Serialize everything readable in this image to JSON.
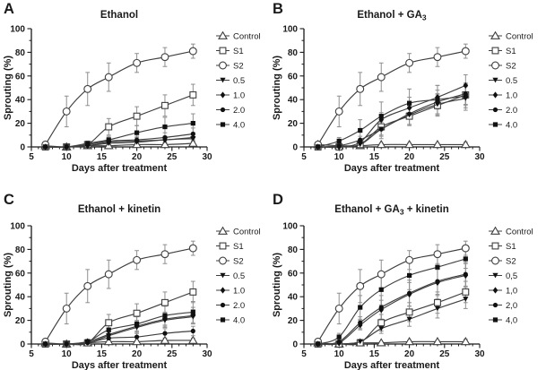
{
  "colors": {
    "axis": "#1a1a1a",
    "line": "#3f3f3f",
    "marker": "#111111",
    "error": "#8f8f8f",
    "background": "#ffffff"
  },
  "axes": {
    "xlabel": "Days after treatment",
    "ylabel": "Sprouting (%)",
    "xlim": [
      5,
      30
    ],
    "ylim": [
      0,
      100
    ],
    "x_ticks": [
      5,
      10,
      15,
      20,
      25,
      30
    ],
    "y_ticks": [
      0,
      20,
      40,
      60,
      80,
      100
    ],
    "x_minor_step": 1,
    "y_minor_step": 10,
    "grid": false,
    "legend_position": "right"
  },
  "chart_data": [
    {
      "panel_label": "A",
      "type": "line",
      "title": "Ethanol",
      "xlabel": "Days after treatment",
      "ylabel": "Sprouting (%)",
      "x": [
        7,
        10,
        13,
        16,
        20,
        24,
        28
      ],
      "xlim": [
        5,
        30
      ],
      "ylim": [
        0,
        100
      ],
      "legend_position": "right",
      "series": [
        {
          "name": "Control",
          "marker": "triangle-open",
          "values": [
            1,
            0,
            1,
            1,
            2,
            2,
            3
          ],
          "errors": [
            1,
            1,
            1,
            1,
            1,
            2,
            2
          ]
        },
        {
          "name": "S1",
          "marker": "square-open",
          "values": [
            0,
            0,
            2,
            17,
            26,
            35,
            44
          ],
          "errors": [
            1,
            1,
            1,
            7,
            8,
            9,
            9
          ]
        },
        {
          "name": "S2",
          "marker": "circle-open",
          "values": [
            2,
            30,
            49,
            59,
            71,
            76,
            81
          ],
          "errors": [
            2,
            13,
            14,
            12,
            8,
            8,
            6
          ]
        },
        {
          "name": "0.5",
          "marker": "triangle-down-filled",
          "values": [
            0,
            0,
            1,
            3,
            4,
            6,
            7
          ],
          "errors": [
            0,
            0,
            1,
            2,
            2,
            3,
            3
          ]
        },
        {
          "name": "1.0",
          "marker": "diamond-filled",
          "values": [
            0,
            0,
            1,
            4,
            5,
            6,
            8
          ],
          "errors": [
            0,
            0,
            1,
            2,
            3,
            3,
            4
          ]
        },
        {
          "name": "2.0",
          "marker": "circle-filled",
          "values": [
            0,
            0,
            2,
            5,
            6,
            8,
            11
          ],
          "errors": [
            0,
            0,
            1,
            3,
            3,
            4,
            5
          ]
        },
        {
          "name": "4.0",
          "marker": "square-filled",
          "values": [
            0,
            0,
            3,
            6,
            12,
            17,
            20
          ],
          "errors": [
            0,
            0,
            2,
            3,
            6,
            8,
            8
          ]
        }
      ]
    },
    {
      "panel_label": "B",
      "type": "line",
      "title": "Ethanol + GA₃",
      "xlabel": "Days after treatment",
      "ylabel": "Sprouting (%)",
      "x": [
        7,
        10,
        13,
        16,
        20,
        24,
        28
      ],
      "xlim": [
        5,
        30
      ],
      "ylim": [
        0,
        100
      ],
      "legend_position": "right",
      "series": [
        {
          "name": "Control",
          "marker": "triangle-open",
          "values": [
            2,
            1,
            1,
            2,
            2,
            2,
            2
          ],
          "errors": [
            1,
            1,
            1,
            1,
            1,
            1,
            2
          ]
        },
        {
          "name": "S1",
          "marker": "square-open",
          "values": [
            0,
            0,
            2,
            17,
            26,
            35,
            44
          ],
          "errors": [
            1,
            1,
            1,
            7,
            8,
            9,
            9
          ]
        },
        {
          "name": "S2",
          "marker": "circle-open",
          "values": [
            2,
            30,
            49,
            59,
            71,
            76,
            81
          ],
          "errors": [
            2,
            13,
            14,
            12,
            8,
            8,
            6
          ]
        },
        {
          "name": "0.5",
          "marker": "triangle-down-filled",
          "values": [
            0,
            0,
            2,
            15,
            27,
            36,
            41
          ],
          "errors": [
            0,
            0,
            2,
            6,
            8,
            9,
            10
          ]
        },
        {
          "name": "1.0",
          "marker": "diamond-filled",
          "values": [
            0,
            0,
            4,
            23,
            33,
            42,
            52
          ],
          "errors": [
            0,
            1,
            2,
            6,
            9,
            10,
            9
          ]
        },
        {
          "name": "2.0",
          "marker": "circle-filled",
          "values": [
            0,
            1,
            6,
            15,
            28,
            38,
            45
          ],
          "errors": [
            0,
            1,
            3,
            8,
            9,
            10,
            9
          ]
        },
        {
          "name": "4.0",
          "marker": "square-filled",
          "values": [
            0,
            5,
            14,
            26,
            37,
            40,
            43
          ],
          "errors": [
            0,
            3,
            9,
            12,
            12,
            12,
            10
          ]
        }
      ]
    },
    {
      "panel_label": "C",
      "type": "line",
      "title": "Ethanol + kinetin",
      "xlabel": "Days after treatment",
      "ylabel": "Sprouting (%)",
      "x": [
        7,
        10,
        13,
        16,
        20,
        24,
        28
      ],
      "xlim": [
        5,
        30
      ],
      "ylim": [
        0,
        100
      ],
      "legend_position": "right",
      "series": [
        {
          "name": "Control",
          "marker": "triangle-open",
          "values": [
            1,
            0,
            1,
            2,
            2,
            3,
            3
          ],
          "errors": [
            1,
            1,
            1,
            1,
            1,
            2,
            2
          ]
        },
        {
          "name": "S1",
          "marker": "square-open",
          "values": [
            0,
            0,
            1,
            18,
            26,
            35,
            44
          ],
          "errors": [
            1,
            1,
            1,
            7,
            8,
            9,
            9
          ]
        },
        {
          "name": "S2",
          "marker": "circle-open",
          "values": [
            2,
            30,
            49,
            59,
            71,
            76,
            81
          ],
          "errors": [
            2,
            13,
            14,
            12,
            8,
            8,
            6
          ]
        },
        {
          "name": "0.5",
          "marker": "triangle-down-filled",
          "values": [
            0,
            0,
            1,
            7,
            14,
            20,
            23
          ],
          "errors": [
            0,
            0,
            1,
            3,
            5,
            6,
            6
          ]
        },
        {
          "name": "1.0",
          "marker": "diamond-filled",
          "values": [
            0,
            0,
            2,
            8,
            15,
            21,
            24
          ],
          "errors": [
            0,
            0,
            1,
            3,
            5,
            6,
            7
          ]
        },
        {
          "name": "2.0",
          "marker": "circle-filled",
          "values": [
            0,
            0,
            1,
            5,
            6,
            9,
            11
          ],
          "errors": [
            0,
            0,
            1,
            3,
            3,
            4,
            4
          ]
        },
        {
          "name": "4.0",
          "marker": "square-filled",
          "values": [
            0,
            0,
            2,
            12,
            17,
            24,
            27
          ],
          "errors": [
            0,
            0,
            2,
            5,
            6,
            8,
            9
          ]
        }
      ]
    },
    {
      "panel_label": "D",
      "type": "line",
      "title": "Ethanol + GA₃ + kinetin",
      "xlabel": "Days after treatment",
      "ylabel": "Sprouting (%)",
      "x": [
        7,
        10,
        13,
        16,
        20,
        24,
        28
      ],
      "xlim": [
        5,
        30
      ],
      "ylim": [
        0,
        100
      ],
      "legend_position": "right",
      "series": [
        {
          "name": "Control",
          "marker": "triangle-open",
          "values": [
            1,
            0,
            1,
            1,
            2,
            2,
            2
          ],
          "errors": [
            1,
            1,
            1,
            1,
            1,
            1,
            2
          ]
        },
        {
          "name": "S1",
          "marker": "square-open",
          "values": [
            0,
            0,
            1,
            18,
            27,
            35,
            44
          ],
          "errors": [
            1,
            1,
            1,
            7,
            8,
            9,
            9
          ]
        },
        {
          "name": "S2",
          "marker": "circle-open",
          "values": [
            2,
            30,
            49,
            59,
            71,
            76,
            81
          ],
          "errors": [
            2,
            13,
            14,
            12,
            8,
            8,
            6
          ]
        },
        {
          "name": "0,5",
          "marker": "triangle-down-filled",
          "values": [
            0,
            0,
            2,
            13,
            21,
            30,
            38
          ],
          "errors": [
            0,
            0,
            1,
            4,
            6,
            8,
            8
          ]
        },
        {
          "name": "1,0",
          "marker": "diamond-filled",
          "values": [
            0,
            1,
            16,
            29,
            42,
            52,
            58
          ],
          "errors": [
            0,
            1,
            4,
            8,
            10,
            11,
            10
          ]
        },
        {
          "name": "2,0",
          "marker": "circle-filled",
          "values": [
            0,
            2,
            18,
            31,
            43,
            53,
            59
          ],
          "errors": [
            0,
            2,
            5,
            10,
            11,
            11,
            10
          ]
        },
        {
          "name": "4,0",
          "marker": "square-filled",
          "values": [
            0,
            6,
            31,
            46,
            58,
            65,
            72
          ],
          "errors": [
            0,
            3,
            10,
            13,
            12,
            12,
            8
          ]
        }
      ]
    }
  ]
}
